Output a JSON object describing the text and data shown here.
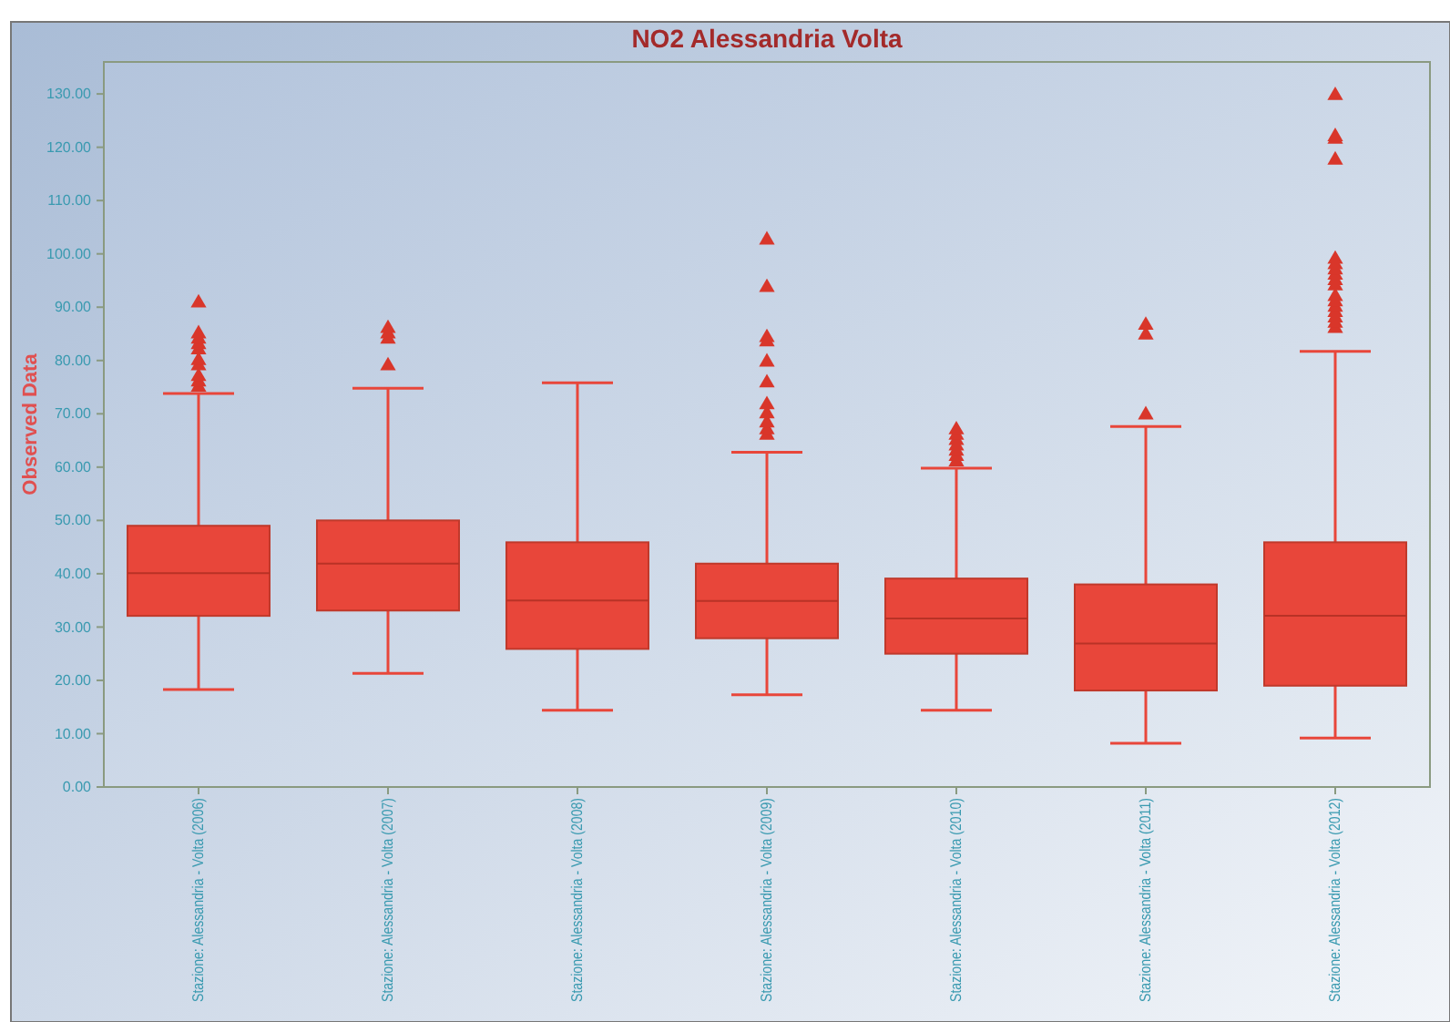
{
  "chart_data": {
    "type": "box",
    "title": "NO2 Alessandria Volta",
    "ylabel": "Observed Data",
    "categories": [
      "Stazione: Alessandria - Volta (2006)",
      "Stazione: Alessandria - Volta (2007)",
      "Stazione: Alessandria - Volta (2008)",
      "Stazione: Alessandria - Volta (2009)",
      "Stazione: Alessandria - Volta (2010)",
      "Stazione: Alessandria - Volta (2011)",
      "Stazione: Alessandria - Volta (2012)"
    ],
    "boxes": [
      {
        "low": 18.3,
        "q1": 32.1,
        "median": 40.1,
        "q3": 49,
        "high": 73.8,
        "outliers": [
          75,
          76,
          77,
          79,
          80,
          82,
          83,
          84,
          85,
          90.8
        ]
      },
      {
        "low": 21.3,
        "q1": 33.1,
        "median": 41.9,
        "q3": 50,
        "high": 74.8,
        "outliers": [
          79,
          84,
          85,
          86
        ]
      },
      {
        "low": 14.4,
        "q1": 25.9,
        "median": 35,
        "q3": 45.9,
        "high": 75.8
      },
      {
        "low": 17.3,
        "q1": 27.9,
        "median": 34.9,
        "q3": 41.9,
        "high": 62.8,
        "outliers": [
          66,
          67,
          68.3,
          70,
          71.7,
          75.8,
          79.7,
          83.5,
          84.3,
          93.7,
          102.6
        ]
      },
      {
        "low": 14.4,
        "q1": 25,
        "median": 31.6,
        "q3": 39.1,
        "high": 59.8,
        "outliers": [
          61,
          62,
          63,
          64,
          65,
          66,
          67
        ]
      },
      {
        "low": 8.2,
        "q1": 18.1,
        "median": 26.9,
        "q3": 38,
        "high": 67.6,
        "outliers": [
          69.8,
          84.8,
          86.6
        ]
      },
      {
        "low": 9.2,
        "q1": 19,
        "median": 32.1,
        "q3": 45.9,
        "high": 81.7,
        "outliers": [
          86,
          87,
          88,
          89,
          90,
          91,
          92,
          94,
          95,
          96,
          97,
          98,
          99,
          117.6,
          121.5,
          122,
          129.7
        ]
      }
    ],
    "color": "#e8463a",
    "marker": "triangle",
    "ylim": [
      0,
      136
    ],
    "yticks": [
      {
        "value": 0,
        "label": "0.00"
      },
      {
        "value": 10,
        "label": "10.00"
      },
      {
        "value": 20,
        "label": "20.00"
      },
      {
        "value": 30,
        "label": "30.00"
      },
      {
        "value": 40,
        "label": "40.00"
      },
      {
        "value": 50,
        "label": "50.00"
      },
      {
        "value": 60,
        "label": "60.00"
      },
      {
        "value": 70,
        "label": "70.00"
      },
      {
        "value": 80,
        "label": "80.00"
      },
      {
        "value": 90,
        "label": "90.00"
      },
      {
        "value": 100,
        "label": "100.00"
      },
      {
        "value": 110,
        "label": "110.00"
      },
      {
        "value": 120,
        "label": "120.00"
      },
      {
        "value": 130,
        "label": "130.00"
      }
    ]
  }
}
